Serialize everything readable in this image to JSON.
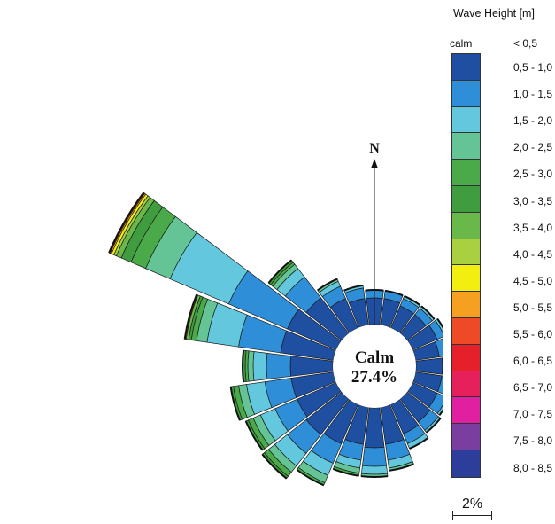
{
  "legend": {
    "title": "Wave Height [m]",
    "calm_label": "calm",
    "first_range": "<  0,5",
    "ranges": [
      "0,5 - 1,0",
      "1,0 - 1,5",
      "1,5 - 2,0",
      "2,0 - 2,5",
      "2,5 - 3,0",
      "3,0 - 3,5",
      "3,5 - 4,0",
      "4,0 - 4,5",
      "4,5 - 5,0",
      "5,0 - 5,5",
      "5,5 - 6,0",
      "6,0 - 6,5",
      "6,5 - 7,0",
      "7,0 - 7,5",
      "7,5 - 8,0",
      "8,0 - 8,5"
    ],
    "colors": [
      "#1f4fa0",
      "#2e8fd8",
      "#63c8dd",
      "#64c496",
      "#4aaa4a",
      "#3f9c3f",
      "#6ab84a",
      "#a8d040",
      "#f2ee10",
      "#f5a020",
      "#ee4a28",
      "#e6202a",
      "#e6205a",
      "#e020a0",
      "#7a3ea0",
      "#2c3e9a"
    ]
  },
  "north_label": "N",
  "calm_text": "Calm",
  "calm_value": "27.4%",
  "scale_label": "2%",
  "chart_data": {
    "type": "wind-rose",
    "title": "",
    "calm_percent": 27.4,
    "legend_title": "Wave Height [m]",
    "scale_reference_percent": 2,
    "sector_width_deg": 15,
    "direction_of_reference": "N",
    "bins": [
      "<0,5",
      "0,5-1,0",
      "1,0-1,5",
      "1,5-2,0",
      "2,0-2,5",
      "2,5-3,0",
      "3,0-3,5",
      "3,5-4,0",
      "4,0-4,5",
      "4,5-5,0",
      "5,0-5,5",
      "5,5-6,0"
    ],
    "sectors": [
      {
        "direction_deg": 0,
        "values": [
          0,
          1.0,
          0.3,
          0,
          0,
          0,
          0,
          0,
          0,
          0,
          0,
          0
        ]
      },
      {
        "direction_deg": 15,
        "values": [
          0,
          1.0,
          0.3,
          0,
          0,
          0,
          0,
          0,
          0,
          0,
          0,
          0
        ]
      },
      {
        "direction_deg": 30,
        "values": [
          0,
          0.9,
          0.3,
          0.1,
          0,
          0,
          0,
          0,
          0,
          0,
          0,
          0
        ]
      },
      {
        "direction_deg": 45,
        "values": [
          0,
          0.9,
          0.3,
          0.1,
          0,
          0,
          0,
          0,
          0,
          0,
          0,
          0
        ]
      },
      {
        "direction_deg": 60,
        "values": [
          0,
          1.0,
          0.3,
          0.1,
          0,
          0,
          0,
          0,
          0,
          0,
          0,
          0
        ]
      },
      {
        "direction_deg": 75,
        "values": [
          0,
          0.9,
          0.3,
          0.1,
          0,
          0,
          0,
          0,
          0,
          0,
          0,
          0
        ]
      },
      {
        "direction_deg": 90,
        "values": [
          0,
          1.0,
          0.3,
          0.1,
          0,
          0,
          0,
          0,
          0,
          0,
          0,
          0
        ]
      },
      {
        "direction_deg": 105,
        "values": [
          0,
          1.0,
          0.4,
          0.1,
          0,
          0,
          0,
          0,
          0,
          0,
          0,
          0
        ]
      },
      {
        "direction_deg": 120,
        "values": [
          0,
          1.0,
          0.4,
          0.1,
          0,
          0,
          0,
          0,
          0,
          0,
          0,
          0
        ]
      },
      {
        "direction_deg": 135,
        "values": [
          0,
          1.1,
          0.4,
          0.1,
          0,
          0,
          0,
          0,
          0,
          0,
          0,
          0
        ]
      },
      {
        "direction_deg": 150,
        "values": [
          0,
          1.2,
          0.4,
          0.2,
          0,
          0,
          0,
          0,
          0,
          0,
          0,
          0
        ]
      },
      {
        "direction_deg": 165,
        "values": [
          0,
          1.4,
          0.6,
          0.3,
          0.1,
          0,
          0,
          0,
          0,
          0,
          0,
          0
        ]
      },
      {
        "direction_deg": 180,
        "values": [
          0,
          1.5,
          0.7,
          0.3,
          0.1,
          0,
          0,
          0,
          0,
          0,
          0,
          0
        ]
      },
      {
        "direction_deg": 195,
        "values": [
          0,
          1.4,
          0.6,
          0.3,
          0.2,
          0.1,
          0,
          0,
          0,
          0,
          0,
          0
        ]
      },
      {
        "direction_deg": 210,
        "values": [
          0,
          1.6,
          0.8,
          0.5,
          0.3,
          0.1,
          0,
          0,
          0,
          0,
          0,
          0
        ]
      },
      {
        "direction_deg": 225,
        "values": [
          0,
          1.7,
          0.9,
          0.6,
          0.3,
          0.2,
          0.1,
          0,
          0,
          0,
          0,
          0
        ]
      },
      {
        "direction_deg": 240,
        "values": [
          0,
          1.6,
          0.9,
          0.6,
          0.3,
          0.2,
          0.1,
          0,
          0,
          0,
          0,
          0
        ]
      },
      {
        "direction_deg": 255,
        "values": [
          0,
          1.6,
          1.0,
          0.7,
          0.3,
          0.2,
          0.1,
          0,
          0,
          0,
          0,
          0
        ]
      },
      {
        "direction_deg": 270,
        "values": [
          0,
          1.6,
          0.9,
          0.5,
          0.2,
          0.1,
          0.1,
          0,
          0,
          0,
          0,
          0
        ]
      },
      {
        "direction_deg": 285,
        "values": [
          0,
          2.0,
          1.6,
          1.2,
          0.4,
          0.2,
          0.1,
          0.1,
          0,
          0,
          0,
          0.05
        ]
      },
      {
        "direction_deg": 300,
        "values": [
          0,
          2.0,
          2.4,
          2.4,
          1.0,
          0.6,
          0.4,
          0.2,
          0.1,
          0.1,
          0.05,
          0.05
        ]
      },
      {
        "direction_deg": 315,
        "values": [
          0,
          1.7,
          1.0,
          0.4,
          0.2,
          0.1,
          0.1,
          0,
          0,
          0,
          0,
          0
        ]
      },
      {
        "direction_deg": 330,
        "values": [
          0,
          1.2,
          0.5,
          0.2,
          0.1,
          0,
          0,
          0,
          0,
          0,
          0,
          0
        ]
      },
      {
        "direction_deg": 345,
        "values": [
          0,
          1.0,
          0.4,
          0.1,
          0,
          0,
          0,
          0,
          0,
          0,
          0,
          0
        ]
      }
    ]
  }
}
